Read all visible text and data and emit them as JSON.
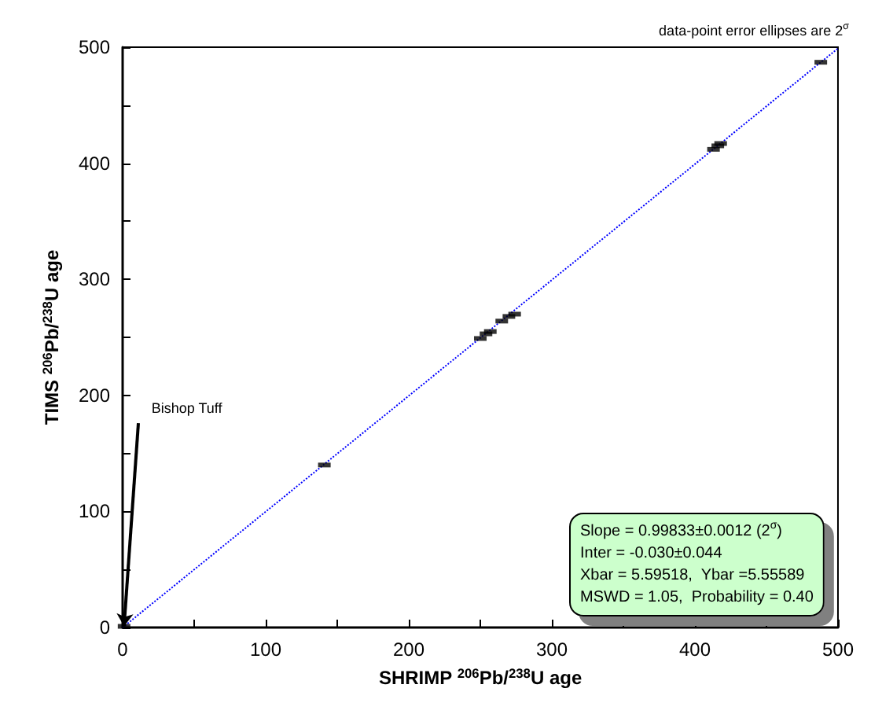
{
  "chart_data": {
    "type": "scatter",
    "xlabel": "SHRIMP $^{206}$Pb/$^{238}$U age",
    "ylabel": "TIMS $^{206}$Pb/$^{238}$U age",
    "xlim": [
      0,
      500
    ],
    "ylim": [
      0,
      500
    ],
    "xticks": [
      0,
      {
        "value": 50,
        "label": null
      },
      100,
      {
        "value": 150,
        "label": null
      },
      200,
      {
        "value": 250,
        "label": null
      },
      300,
      {
        "value": 350,
        "label": null
      },
      400,
      {
        "value": 450,
        "label": null
      },
      500
    ],
    "yticks": [
      0,
      {
        "value": 50,
        "label": null
      },
      100,
      {
        "value": 150,
        "label": null
      },
      200,
      {
        "value": 250,
        "label": null
      },
      300,
      {
        "value": 350,
        "label": null
      },
      400,
      {
        "value": 450,
        "label": null
      },
      500
    ],
    "grid": false,
    "marker": "square",
    "series": [
      {
        "color": "#000000",
        "x": [
          1,
          141,
          250,
          254,
          257,
          265,
          270,
          274,
          413,
          416,
          418,
          488
        ],
        "values": [
          1,
          140,
          249,
          253,
          255,
          264,
          268,
          270,
          412,
          415,
          417,
          487
        ]
      },
      {
        "type": "line",
        "color": "#0000ff",
        "line_style": "dotted",
        "marker": "none",
        "x": [
          0,
          500
        ],
        "values": [
          0,
          499
        ]
      }
    ],
    "annotations": [
      "data-point error ellipses are 2$^{σ}$",
      {
        "text": "Bishop Tuff",
        "x": 1,
        "y": 1
      },
      "Slope = 0.99833±0.0012 (2$^{σ}$)",
      "Inter = -0.030±0.044",
      "Xbar = 5.59518,  Ybar =5.55589",
      "MSWD = 1.05,  Probability = 0.40"
    ]
  }
}
